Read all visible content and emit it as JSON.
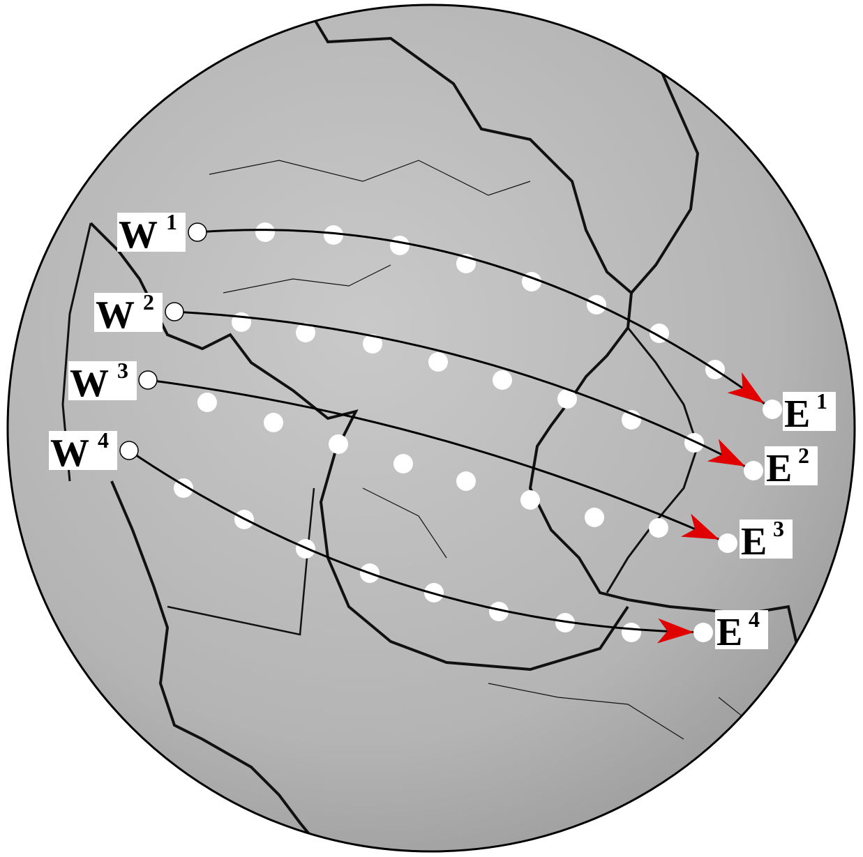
{
  "profiles": [
    {
      "start": {
        "letter": "W",
        "sup": "1"
      },
      "end": {
        "letter": "E",
        "sup": "1"
      }
    },
    {
      "start": {
        "letter": "W",
        "sup": "2"
      },
      "end": {
        "letter": "E",
        "sup": "2"
      }
    },
    {
      "start": {
        "letter": "W",
        "sup": "3"
      },
      "end": {
        "letter": "E",
        "sup": "3"
      }
    },
    {
      "start": {
        "letter": "W",
        "sup": "4"
      },
      "end": {
        "letter": "E",
        "sup": "4"
      }
    }
  ]
}
